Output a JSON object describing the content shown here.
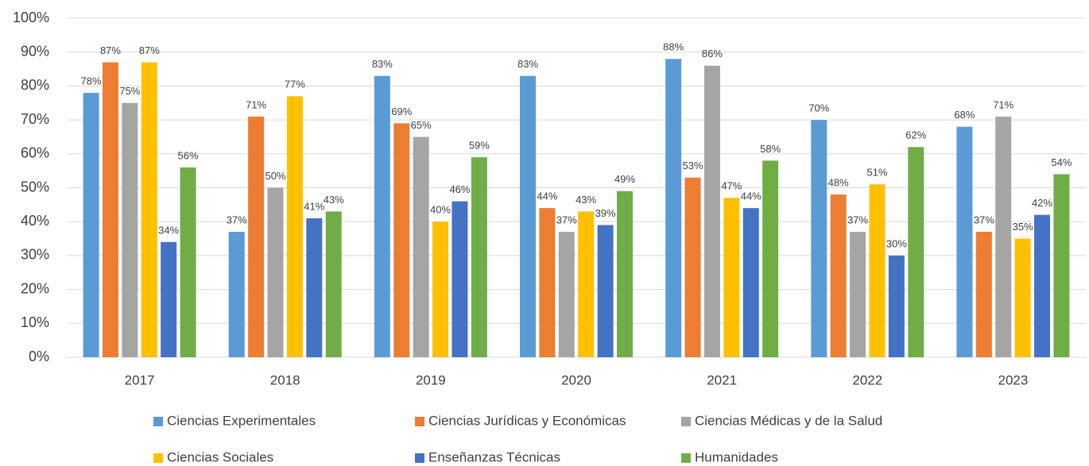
{
  "chart_data": {
    "type": "bar",
    "categories": [
      "2017",
      "2018",
      "2019",
      "2020",
      "2021",
      "2022",
      "2023"
    ],
    "series": [
      {
        "name": "Ciencias Experimentales",
        "color": "#5b9bd5",
        "values": [
          78,
          37,
          83,
          83,
          88,
          70,
          68
        ],
        "value_labels": [
          "78%",
          "37%",
          "83%",
          "83%",
          "88%",
          "70%",
          "68%"
        ]
      },
      {
        "name": "Ciencias Jurídicas y Económicas",
        "color": "#ed7d31",
        "values": [
          87,
          71,
          69,
          44,
          53,
          48,
          37
        ],
        "value_labels": [
          "87%",
          "71%",
          "69%",
          "44%",
          "53%",
          "48%",
          "37%"
        ]
      },
      {
        "name": "Ciencias Médicas y de la Salud",
        "color": "#a5a5a5",
        "values": [
          75,
          50,
          65,
          37,
          86,
          37,
          71
        ],
        "value_labels": [
          "75%",
          "50%",
          "65%",
          "37%",
          "86%",
          "37%",
          "71%"
        ]
      },
      {
        "name": "Ciencias Sociales",
        "color": "#ffc000",
        "values": [
          87,
          77,
          40,
          43,
          47,
          51,
          35
        ],
        "value_labels": [
          "87%",
          "77%",
          "40%",
          "43%",
          "47%",
          "51%",
          "35%"
        ]
      },
      {
        "name": "Enseñanzas Técnicas",
        "color": "#4472c4",
        "values": [
          34,
          41,
          46,
          39,
          44,
          30,
          42
        ],
        "value_labels": [
          "34%",
          "41%",
          "46%",
          "39%",
          "44%",
          "30%",
          "42%"
        ]
      },
      {
        "name": "Humanidades",
        "color": "#70ad47",
        "values": [
          56,
          43,
          59,
          49,
          58,
          62,
          54
        ],
        "value_labels": [
          "56%",
          "43%",
          "59%",
          "49%",
          "58%",
          "62%",
          "54%"
        ]
      }
    ],
    "ylim": [
      0,
      100
    ],
    "yticks": [
      {
        "value": 0,
        "label": "0%"
      },
      {
        "value": 10,
        "label": "10%"
      },
      {
        "value": 20,
        "label": "20%"
      },
      {
        "value": 30,
        "label": "30%"
      },
      {
        "value": 40,
        "label": "40%"
      },
      {
        "value": 50,
        "label": "50%"
      },
      {
        "value": 60,
        "label": "60%"
      },
      {
        "value": 70,
        "label": "70%"
      },
      {
        "value": 80,
        "label": "80%"
      },
      {
        "value": 90,
        "label": "90%"
      },
      {
        "value": 100,
        "label": "100%"
      }
    ],
    "grid": true,
    "legend": "bottom"
  }
}
